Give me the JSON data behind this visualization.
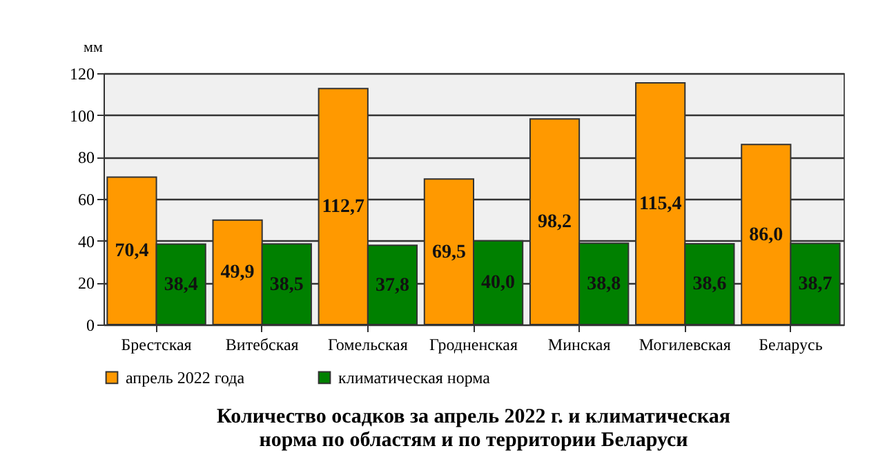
{
  "chart_data": {
    "type": "bar",
    "title": "Количество осадков за апрель 2022 г. и климатическая норма по областям и по территории Беларуси",
    "ylabel": "мм",
    "categories": [
      "Брестская",
      "Витебская",
      "Гомельская",
      "Гродненская",
      "Минская",
      "Могилевская",
      "Беларусь"
    ],
    "series": [
      {
        "name": "апрель 2022 года",
        "color": "#ff9900",
        "values": [
          70.4,
          49.9,
          112.7,
          69.5,
          98.2,
          115.4,
          86.0
        ],
        "value_labels": [
          "70,4",
          "49,9",
          "112,7",
          "69,5",
          "98,2",
          "115,4",
          "86,0"
        ]
      },
      {
        "name": "климатическая норма",
        "color": "#008000",
        "values": [
          38.4,
          38.5,
          37.8,
          40.0,
          38.8,
          38.6,
          38.7
        ],
        "value_labels": [
          "38,4",
          "38,5",
          "37,8",
          "40,0",
          "38,8",
          "38,6",
          "38,7"
        ]
      }
    ],
    "ylim": [
      0,
      120
    ],
    "yticks": [
      0,
      20,
      40,
      60,
      80,
      100,
      120
    ],
    "grid": "y",
    "legend": "bottom"
  }
}
